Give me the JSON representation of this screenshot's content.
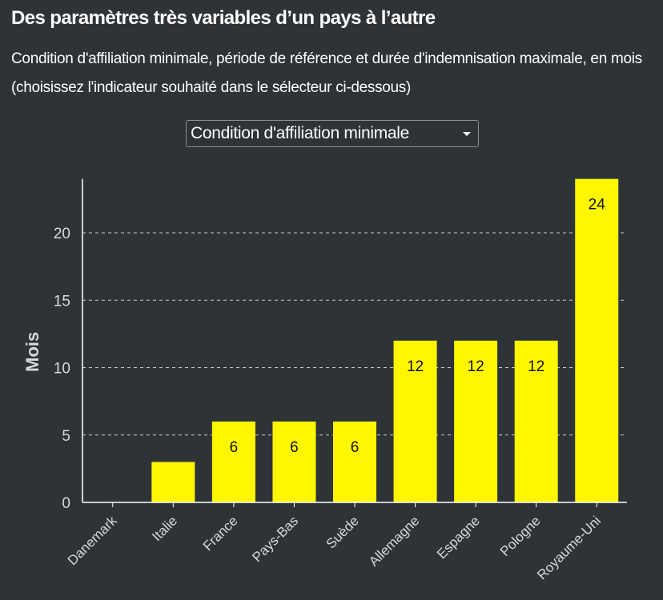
{
  "header": {
    "title": "Des paramètres très variables d’un pays à l’autre",
    "subtitle": "Condition d'affiliation minimale, période de référence et durée d'indemnisation maximale, en mois (choisissez l'indicateur souhaité dans le sélecteur ci-dessous)"
  },
  "selector": {
    "selected": "Condition d'affiliation minimale",
    "icon": "chevron-down-icon"
  },
  "colors": {
    "background": "#2e3337",
    "bar": "#fff700",
    "text": "#ffffff",
    "axis_text": "#d7dadc"
  },
  "chart_data": {
    "type": "bar",
    "categories": [
      "Danemark",
      "Italie",
      "France",
      "Pays-Bas",
      "Suède",
      "Allemagne",
      "Espagne",
      "Pologne",
      "Royaume-Uni"
    ],
    "values": [
      0,
      3,
      6,
      6,
      6,
      12,
      12,
      12,
      24
    ],
    "data_labels": [
      "",
      "",
      "6",
      "6",
      "6",
      "12",
      "12",
      "12",
      "24"
    ],
    "ylabel": "Mois",
    "xlabel": "",
    "yticks": [
      0,
      5,
      10,
      15,
      20
    ],
    "ylim": [
      0,
      24
    ],
    "grid": "horizontal-dashed",
    "legend": "none"
  }
}
